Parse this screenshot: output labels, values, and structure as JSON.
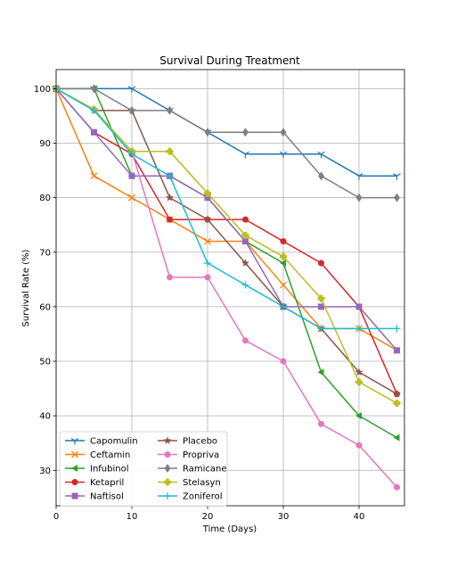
{
  "chart_data": {
    "type": "line",
    "title": "Survival During Treatment",
    "xlabel": "Time (Days)",
    "ylabel": "Survival Rate (%)",
    "xlim": [
      0,
      46
    ],
    "ylim": [
      23.5,
      103.5
    ],
    "xticks": [
      0,
      10,
      20,
      30,
      40
    ],
    "yticks": [
      30,
      40,
      50,
      60,
      70,
      80,
      90,
      100
    ],
    "grid": true,
    "legend": {
      "placement": "lower-left",
      "columns": 2
    },
    "x": [
      0,
      5,
      10,
      15,
      20,
      25,
      30,
      35,
      40,
      45
    ],
    "series": [
      {
        "name": "Capomulin",
        "color": "#1f77b4",
        "marker": "tri_down",
        "values": [
          100,
          100,
          100,
          96,
          92,
          88,
          88,
          88,
          84,
          84
        ]
      },
      {
        "name": "Ceftamin",
        "color": "#ff7f0e",
        "marker": "x",
        "values": [
          100,
          84,
          80,
          76,
          72,
          72,
          64,
          56,
          56,
          52
        ]
      },
      {
        "name": "Infubinol",
        "color": "#2ca02c",
        "marker": "tri_left",
        "values": [
          100,
          100,
          84,
          84,
          80,
          72,
          68,
          48,
          40,
          36
        ]
      },
      {
        "name": "Ketapril",
        "color": "#d62728",
        "marker": "circle",
        "values": [
          100,
          92,
          88,
          76,
          76,
          76,
          72,
          68,
          60,
          44
        ]
      },
      {
        "name": "Naftisol",
        "color": "#9467bd",
        "marker": "square",
        "values": [
          100,
          92,
          84,
          84,
          80,
          72,
          60,
          60,
          60,
          52
        ]
      },
      {
        "name": "Placebo",
        "color": "#8c564b",
        "marker": "star",
        "values": [
          100,
          96,
          96,
          80,
          76,
          68,
          60,
          56,
          48,
          44
        ]
      },
      {
        "name": "Propriva",
        "color": "#e377c2",
        "marker": "circle",
        "values": [
          100,
          96.2,
          88.5,
          65.4,
          65.4,
          53.8,
          50,
          38.5,
          34.6,
          26.9
        ]
      },
      {
        "name": "Ramicane",
        "color": "#7f7f7f",
        "marker": "diamond",
        "values": [
          100,
          100,
          96,
          96,
          92,
          92,
          92,
          84,
          80,
          80
        ]
      },
      {
        "name": "Stelasyn",
        "color": "#bcbd22",
        "marker": "plus",
        "values": [
          100,
          96.2,
          88.5,
          88.5,
          80.8,
          73.1,
          69.2,
          61.5,
          46.2,
          42.3
        ]
      },
      {
        "name": "Zoniferol",
        "color": "#17becf",
        "marker": "thin_plus",
        "values": [
          100,
          96,
          88,
          84,
          68,
          64,
          60,
          56,
          56,
          56
        ]
      }
    ]
  }
}
